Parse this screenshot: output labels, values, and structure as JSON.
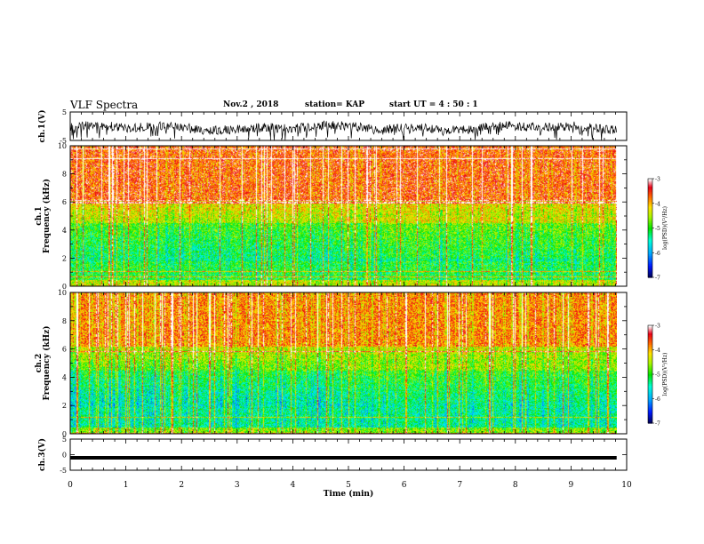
{
  "header": {
    "title": "VLF Spectra",
    "date": "Nov.2 , 2018",
    "station": "station= KAP",
    "start": "start UT =  4 : 50 : 1"
  },
  "colorbar": {
    "label": "log(PSD)(V²/Hz)",
    "ticks": [
      "-3",
      "-4",
      "-5",
      "-6",
      "-7"
    ],
    "colors": [
      "#ffffff",
      "#e0001a",
      "#ff4c00",
      "#ffd300",
      "#9bf500",
      "#00e000",
      "#00ffe0",
      "#00a0ff",
      "#0030ff",
      "#000040"
    ]
  },
  "chart_data": [
    {
      "type": "line",
      "name": "ch1-waveform",
      "ylabel": "ch.1(V)",
      "ylim": [
        -5,
        5
      ],
      "yticks": [
        "5",
        "-5"
      ],
      "xlim": [
        0,
        10
      ],
      "description_values": {
        "level_min": -4.9,
        "level_max": 1.3
      }
    },
    {
      "type": "heatmap",
      "name": "ch1-spectrogram",
      "ylabel": "ch.1\nFrequency (kHz)",
      "ylim": [
        0,
        10
      ],
      "yticks": [
        "0",
        "2",
        "4",
        "6",
        "8",
        "10"
      ],
      "xlim": [
        0,
        10
      ],
      "zlim": [
        -7,
        -3
      ]
    },
    {
      "type": "heatmap",
      "name": "ch2-spectrogram",
      "ylabel": "ch.2\nFrequency (kHz)",
      "ylim": [
        0,
        10
      ],
      "yticks": [
        "0",
        "2",
        "4",
        "6",
        "8",
        "10"
      ],
      "xlim": [
        0,
        10
      ],
      "zlim": [
        -7,
        -3
      ]
    },
    {
      "type": "line",
      "name": "ch3-waveform",
      "ylabel": "ch.3(V)",
      "ylim": [
        -5,
        5
      ],
      "yticks": [
        "5",
        "0",
        "-5"
      ],
      "xlim": [
        0,
        10
      ],
      "level": -1.0
    }
  ],
  "xaxis": {
    "label": "Time (min)",
    "ticks": [
      "0",
      "1",
      "2",
      "3",
      "4",
      "5",
      "6",
      "7",
      "8",
      "9",
      "10"
    ],
    "data_end": 9.82
  }
}
